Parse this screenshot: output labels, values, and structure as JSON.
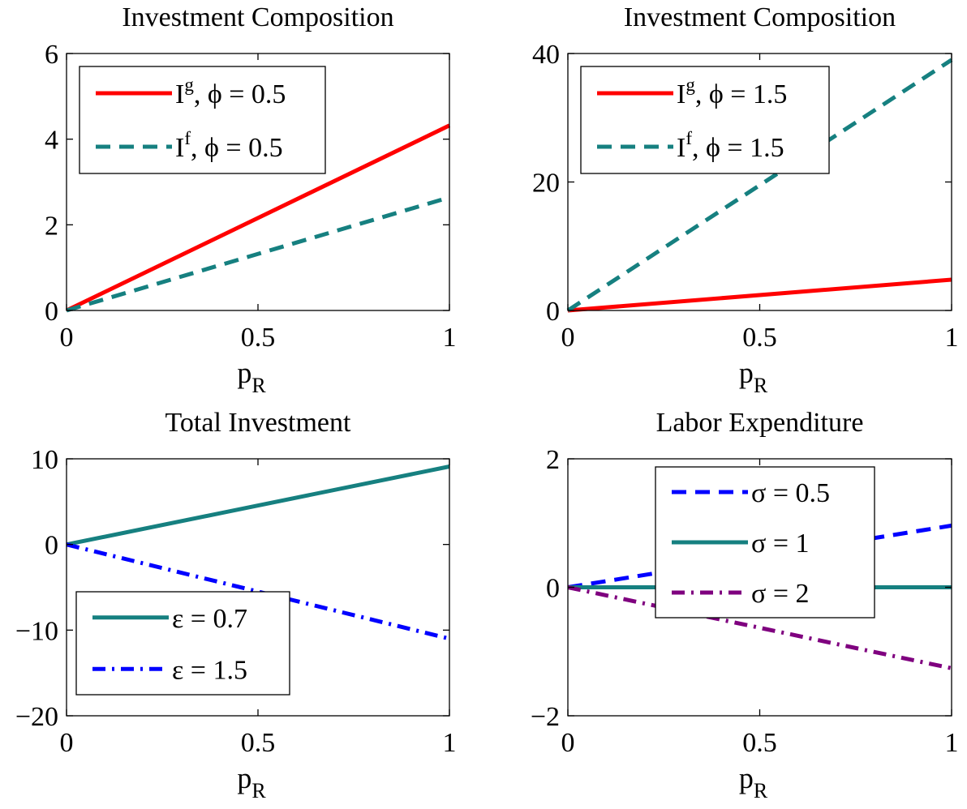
{
  "colors": {
    "red": "#ff0000",
    "teal": "#168080",
    "blue": "#0000ff",
    "purple": "#7f007f"
  },
  "chart_data": [
    {
      "type": "line",
      "title": "Investment Composition",
      "xlabel": {
        "main": "p",
        "sub": "R"
      },
      "xlim": [
        0,
        1
      ],
      "ylim": [
        0,
        6
      ],
      "xticks": [
        "0",
        "0.5",
        "1"
      ],
      "yticks": [
        "0",
        "2",
        "4",
        "6"
      ],
      "legend_position": "top-left",
      "series": [
        {
          "legend": {
            "main": "I",
            "sup": "g",
            "rest": ", ϕ = 0.5"
          },
          "color": "#ff0000",
          "style": "solid",
          "x": [
            0,
            1
          ],
          "y": [
            0,
            4.32
          ]
        },
        {
          "legend": {
            "main": "I",
            "sup": "f",
            "rest": ", ϕ = 0.5"
          },
          "color": "#168080",
          "style": "dashed",
          "x": [
            0,
            1
          ],
          "y": [
            0,
            2.64
          ]
        }
      ]
    },
    {
      "type": "line",
      "title": "Investment Composition",
      "xlabel": {
        "main": "p",
        "sub": "R"
      },
      "xlim": [
        0,
        1
      ],
      "ylim": [
        0,
        40
      ],
      "xticks": [
        "0",
        "0.5",
        "1"
      ],
      "yticks": [
        "0",
        "20",
        "40"
      ],
      "legend_position": "top-left",
      "series": [
        {
          "legend": {
            "main": "I",
            "sup": "g",
            "rest": ", ϕ = 1.5"
          },
          "color": "#ff0000",
          "style": "solid",
          "x": [
            0,
            1
          ],
          "y": [
            0,
            4.8
          ]
        },
        {
          "legend": {
            "main": "I",
            "sup": "f",
            "rest": ", ϕ = 1.5"
          },
          "color": "#168080",
          "style": "dashed",
          "x": [
            0,
            1
          ],
          "y": [
            0,
            39
          ]
        }
      ]
    },
    {
      "type": "line",
      "title": "Total Investment",
      "xlabel": {
        "main": "p",
        "sub": "R"
      },
      "xlim": [
        0,
        1
      ],
      "ylim": [
        -20,
        10
      ],
      "xticks": [
        "0",
        "0.5",
        "1"
      ],
      "yticks": [
        "10",
        "0",
        "−10",
        "−20"
      ],
      "legend_position": "bottom-left",
      "series": [
        {
          "legend": {
            "main": "ε = 0.7"
          },
          "color": "#168080",
          "style": "solid",
          "x": [
            0,
            1
          ],
          "y": [
            0,
            9.1
          ]
        },
        {
          "legend": {
            "main": "ε = 1.5"
          },
          "color": "#0000ff",
          "style": "dashdot",
          "x": [
            0,
            1
          ],
          "y": [
            0,
            -11
          ]
        }
      ]
    },
    {
      "type": "line",
      "title": "Labor Expenditure",
      "xlabel": {
        "main": "p",
        "sub": "R"
      },
      "xlim": [
        0,
        1
      ],
      "ylim": [
        -2,
        2
      ],
      "xticks": [
        "0",
        "0.5",
        "1"
      ],
      "yticks": [
        "2",
        "0",
        "−2"
      ],
      "legend_position": "top-center",
      "series": [
        {
          "legend": {
            "main": "σ = 0.5"
          },
          "color": "#0000ff",
          "style": "dashed",
          "x": [
            0,
            1
          ],
          "y": [
            0,
            0.96
          ]
        },
        {
          "legend": {
            "main": "σ = 1"
          },
          "color": "#168080",
          "style": "solid",
          "x": [
            0,
            1
          ],
          "y": [
            0,
            0
          ]
        },
        {
          "legend": {
            "main": "σ = 2"
          },
          "color": "#7f007f",
          "style": "dashdot",
          "x": [
            0,
            1
          ],
          "y": [
            0,
            -1.26
          ]
        }
      ]
    }
  ]
}
